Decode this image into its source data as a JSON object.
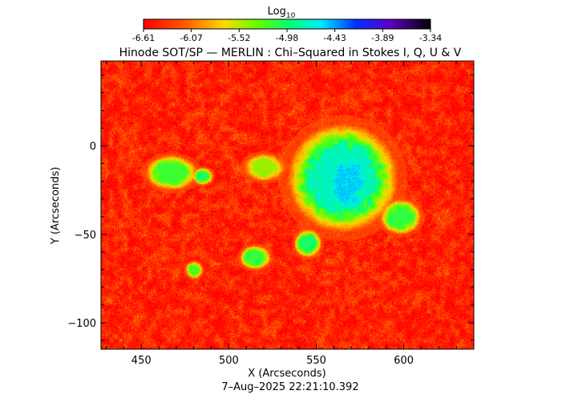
{
  "colorbar": {
    "label_main": "Log",
    "label_sub": "10",
    "ticks": [
      "-6.61",
      "-6.07",
      "-5.52",
      "-4.98",
      "-4.43",
      "-3.89",
      "-3.34"
    ],
    "range": [
      -6.61,
      -3.34
    ]
  },
  "chart_data": {
    "type": "heatmap",
    "title": "Hinode SOT/SP — MERLIN : Chi–Squared in Stokes I, Q, U & V",
    "xlabel": "X (Arcseconds)",
    "ylabel": "Y (Arcseconds)",
    "xlim": [
      427,
      640
    ],
    "ylim": [
      -115,
      48
    ],
    "x_ticks": [
      450,
      500,
      550,
      600
    ],
    "x_tick_labels": [
      "450",
      "500",
      "550",
      "600"
    ],
    "y_ticks": [
      0,
      -50,
      -100
    ],
    "y_tick_labels": [
      "0",
      "−50",
      "−100"
    ],
    "value_range": [
      -6.61,
      -3.34
    ],
    "colormap": "rainbow (red low to black high)",
    "timestamp": "7–Aug–2025 22:21:10.392",
    "regions": [
      {
        "x": 565,
        "y": -18,
        "rx": 32,
        "ry": 31,
        "level": -4.75
      },
      {
        "x": 568,
        "y": -20,
        "rx": 15,
        "ry": 20,
        "level": -4.55
      },
      {
        "x": 545,
        "y": -55,
        "rx": 8,
        "ry": 8,
        "level": -5.0
      },
      {
        "x": 515,
        "y": -63,
        "rx": 9,
        "ry": 7,
        "level": -5.1
      },
      {
        "x": 467,
        "y": -15,
        "rx": 15,
        "ry": 10,
        "level": -5.15
      },
      {
        "x": 485,
        "y": -17,
        "rx": 6,
        "ry": 5,
        "level": -5.0
      },
      {
        "x": 598,
        "y": -40,
        "rx": 12,
        "ry": 10,
        "level": -5.1
      },
      {
        "x": 480,
        "y": -70,
        "rx": 5,
        "ry": 5,
        "level": -5.2
      },
      {
        "x": 520,
        "y": -12,
        "rx": 12,
        "ry": 8,
        "level": -5.45
      }
    ]
  }
}
